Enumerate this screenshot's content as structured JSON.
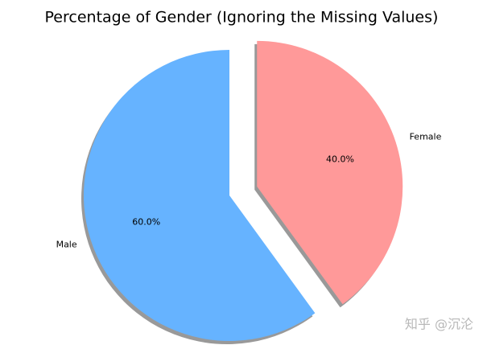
{
  "chart_data": {
    "type": "pie",
    "title": "Percentage of Gender (Ignoring the Missing Values)",
    "categories": [
      "Male",
      "Female"
    ],
    "values": [
      60,
      40
    ],
    "value_labels": [
      "60.0%",
      "40.0%"
    ],
    "colors": [
      "#66b3ff",
      "#ff9999"
    ]
  },
  "watermark": "知乎 @沉沦"
}
